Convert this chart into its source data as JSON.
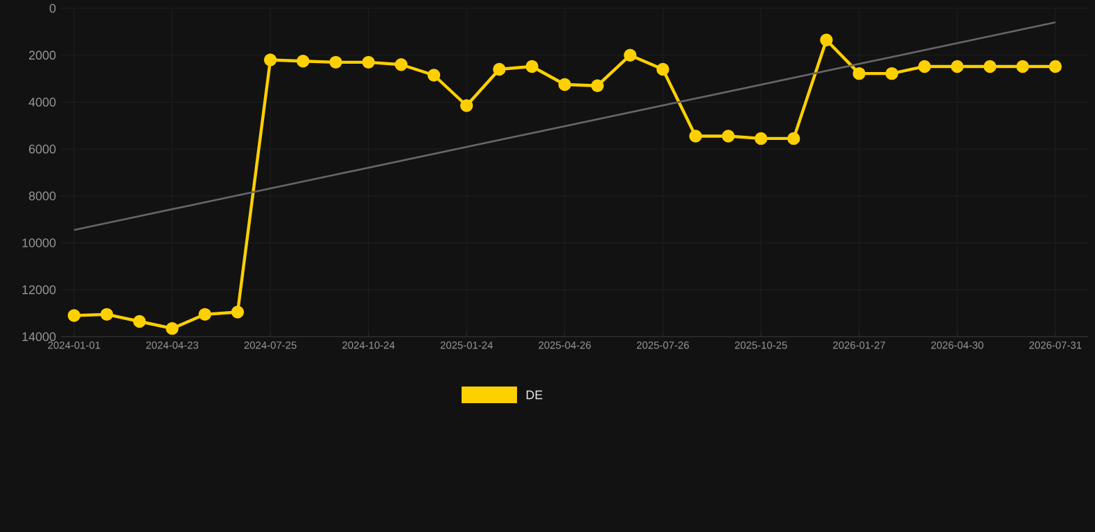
{
  "chart_data": {
    "type": "line",
    "categories": [
      "2024-01-01",
      null,
      null,
      "2024-04-23",
      null,
      null,
      "2024-07-25",
      null,
      null,
      "2024-10-24",
      null,
      null,
      "2025-01-24",
      null,
      null,
      "2025-04-26",
      null,
      null,
      "2025-07-26",
      null,
      null,
      "2025-10-25",
      null,
      null,
      "2026-01-27",
      null,
      null,
      "2026-04-30",
      null,
      null,
      "2026-07-31"
    ],
    "series": [
      {
        "name": "DE",
        "color": "#ffd000",
        "marker": "circle",
        "values": [
          13100,
          13050,
          13350,
          13650,
          13050,
          12950,
          2200,
          2250,
          2300,
          2300,
          2400,
          2850,
          4150,
          2600,
          2480,
          3250,
          3300,
          2000,
          2600,
          5450,
          5450,
          5550,
          5550,
          1350,
          2780,
          2780,
          2480,
          2480,
          2480,
          2480,
          2480
        ]
      },
      {
        "type": "line",
        "color": "#666666",
        "marker": "none",
        "values": [
          9450,
          null,
          null,
          null,
          null,
          null,
          null,
          null,
          null,
          null,
          null,
          null,
          null,
          null,
          null,
          null,
          null,
          null,
          null,
          null,
          null,
          null,
          null,
          null,
          null,
          null,
          null,
          null,
          null,
          null,
          600
        ]
      }
    ],
    "ylim": [
      14000,
      0
    ],
    "yticks": [
      0,
      2000,
      4000,
      6000,
      8000,
      10000,
      12000,
      14000
    ],
    "grid": true,
    "legend": "bottom"
  }
}
